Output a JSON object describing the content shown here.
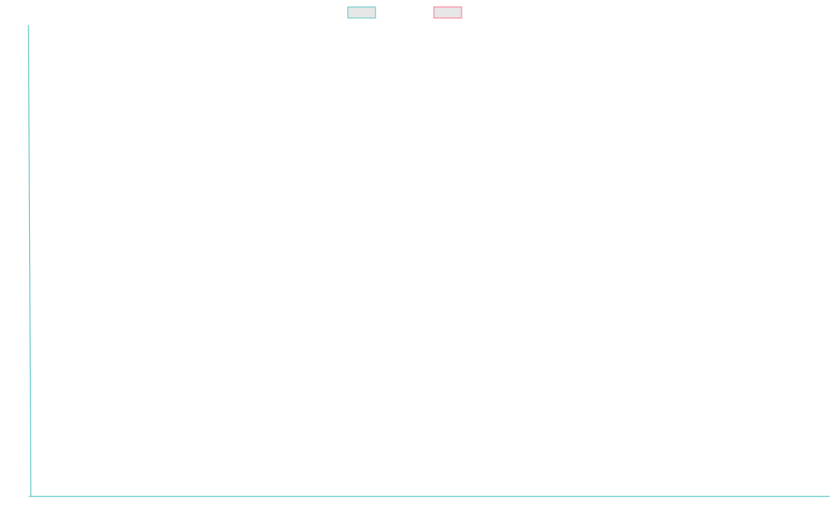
{
  "chart_data": {
    "type": "line",
    "title": "",
    "xlabel": "",
    "ylabel": "",
    "legend": {
      "placement": "top-center",
      "entries": [
        {
          "name": "",
          "color": "#4bc0c0",
          "fill": "#e6e6e6"
        },
        {
          "name": "",
          "color": "#ff6384",
          "fill": "#e6e6e6"
        }
      ]
    },
    "grid": false,
    "xlim": [
      0,
      1
    ],
    "ylim": [
      0,
      1
    ],
    "series": [
      {
        "name": "",
        "color": "#4bc0c0",
        "points": [
          {
            "x": 0,
            "y": 1
          },
          {
            "x": 0.003,
            "y": 0
          },
          {
            "x": 1,
            "y": 0
          }
        ]
      },
      {
        "name": "",
        "color": "#ff6384",
        "points": []
      }
    ]
  }
}
